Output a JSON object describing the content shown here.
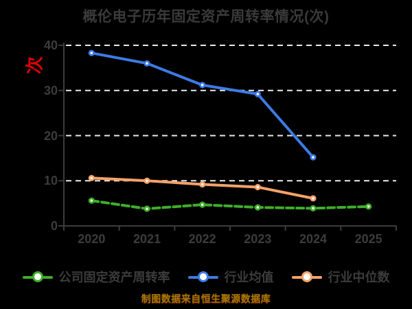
{
  "title": "概伦电子历年固定资产周转率情况(次)",
  "footer": "制图数据来自恒生聚源数据库",
  "colors": {
    "background": "#000000",
    "text_gray": "#3c3c3c",
    "grid_white": "#ebebeb",
    "axis_label_red": "#e00000",
    "footer_gold": "#9d7a06",
    "company_green": "#3fae29",
    "industry_avg_blue": "#3d7be5",
    "industry_median_orange": "#f5a268"
  },
  "chart_data": {
    "type": "line",
    "title": "概伦电子历年固定资产周转率情况(次)",
    "ylabel": "次",
    "xlabel": "",
    "categories": [
      "2020",
      "2021",
      "2022",
      "2023",
      "2024",
      "2025"
    ],
    "series": [
      {
        "name": "公司固定资产周转率",
        "color": "#3fae29",
        "line_style": "dashed",
        "values": [
          5.6,
          3.8,
          4.7,
          4.1,
          3.9,
          4.3
        ]
      },
      {
        "name": "行业均值",
        "color": "#3d7be5",
        "line_style": "solid",
        "values": [
          38.3,
          36.0,
          31.2,
          29.2,
          15.2,
          null
        ]
      },
      {
        "name": "行业中位数",
        "color": "#f5a268",
        "line_style": "solid",
        "values": [
          10.6,
          10.0,
          9.2,
          8.6,
          6.1,
          null
        ]
      }
    ],
    "ylim": [
      0,
      40
    ],
    "yticks": [
      0,
      10,
      20,
      30,
      40
    ],
    "grid": "horizontal-dashed-white",
    "legend_position": "bottom",
    "marker": "circle-white-fill"
  }
}
